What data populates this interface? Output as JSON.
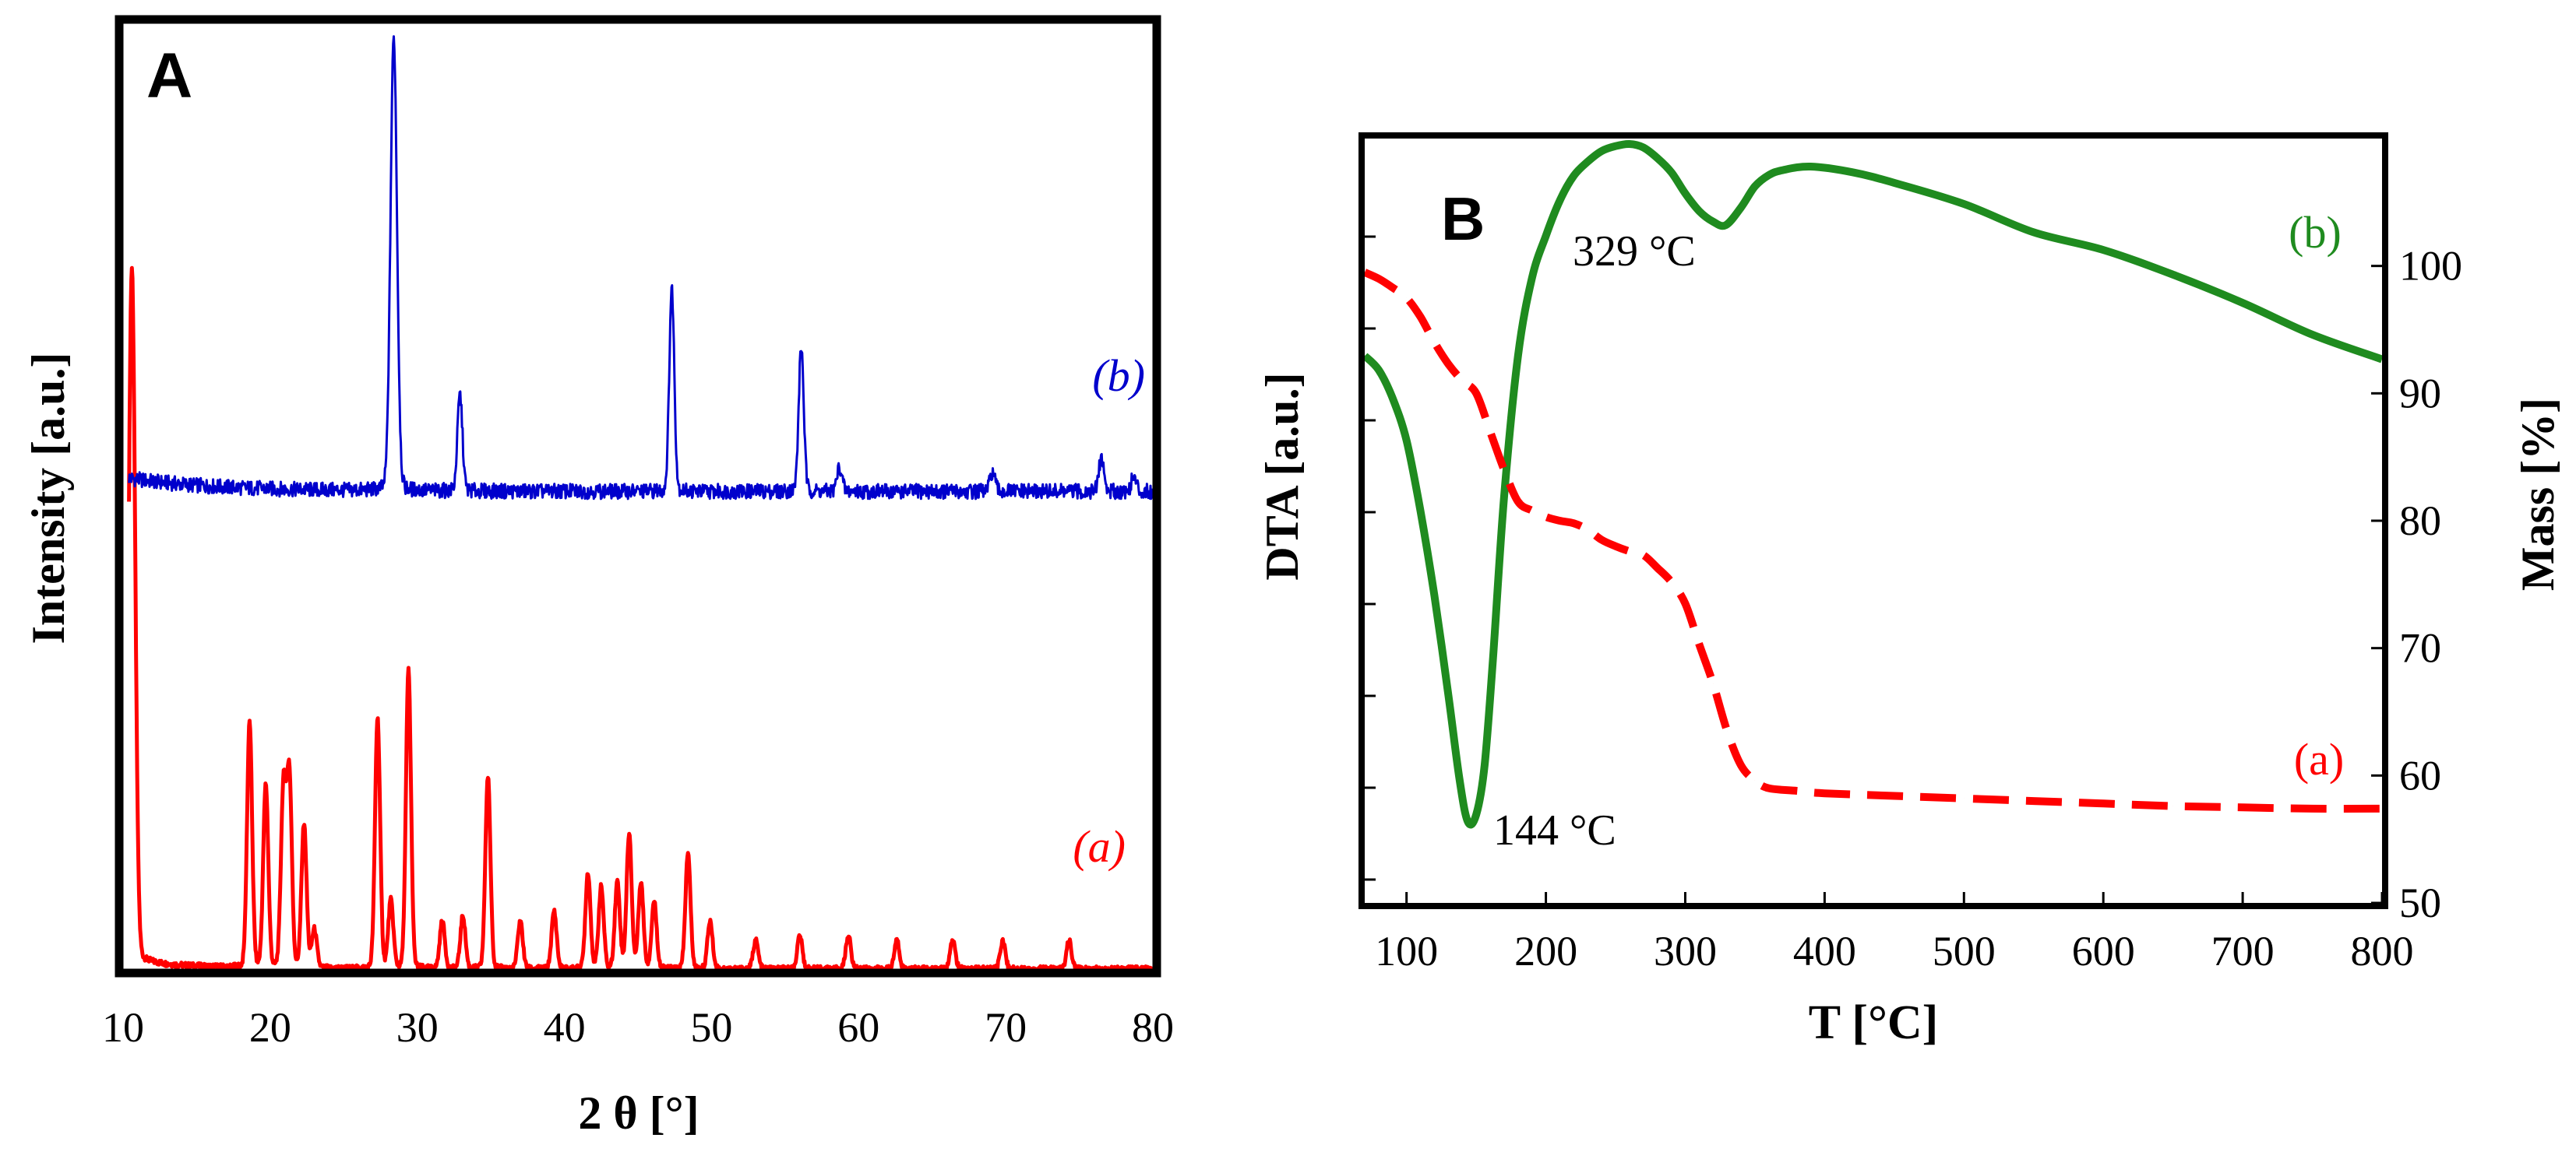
{
  "colors": {
    "xrd_a": "#ff0000",
    "xrd_b": "#0000cc",
    "dta": "#1f8b1f",
    "mass": "#ff0000",
    "frame": "#000000"
  },
  "chart_data": [
    {
      "type": "line",
      "panel_label": "A",
      "title": "",
      "xlabel": "2 θ [°]",
      "ylabel": "Intensity [a.u.]",
      "xlim": [
        10,
        80
      ],
      "ylim": [
        0,
        100
      ],
      "x_ticks": [
        10,
        20,
        30,
        40,
        50,
        60,
        70,
        80
      ],
      "series": [
        {
          "name": "(a)",
          "label": "(a)",
          "color": "#ff0000",
          "baseline": 0,
          "peaks": [
            [
              10.6,
              72
            ],
            [
              18.6,
              25.5
            ],
            [
              19.7,
              19
            ],
            [
              20.9,
              18.5
            ],
            [
              21.3,
              20
            ],
            [
              22.3,
              15
            ],
            [
              23.0,
              4
            ],
            [
              27.3,
              26
            ],
            [
              28.2,
              7
            ],
            [
              29.4,
              31
            ],
            [
              31.7,
              5
            ],
            [
              33.1,
              5.5
            ],
            [
              34.8,
              20
            ],
            [
              37.0,
              5
            ],
            [
              39.3,
              6
            ],
            [
              41.6,
              10
            ],
            [
              42.5,
              8.5
            ],
            [
              43.6,
              9
            ],
            [
              44.4,
              14
            ],
            [
              45.2,
              9
            ],
            [
              46.1,
              7
            ],
            [
              48.4,
              12
            ],
            [
              49.9,
              5
            ],
            [
              53.0,
              3
            ],
            [
              56.0,
              3.5
            ],
            [
              59.3,
              3.5
            ],
            [
              62.6,
              3
            ],
            [
              66.4,
              3
            ],
            [
              69.8,
              3
            ],
            [
              74.3,
              3
            ]
          ]
        },
        {
          "name": "(b)",
          "label": "(b)",
          "color": "#0000cc",
          "baseline": 50.5,
          "peaks": [
            [
              28.4,
              47
            ],
            [
              32.9,
              10
            ],
            [
              47.3,
              21
            ],
            [
              56.1,
              15
            ],
            [
              58.7,
              2.5
            ],
            [
              69.1,
              2
            ],
            [
              76.5,
              3.5
            ],
            [
              78.7,
              1.5
            ]
          ]
        }
      ]
    },
    {
      "type": "line",
      "panel_label": "B",
      "title": "",
      "xlabel": "T [°C]",
      "ylabel_left": "DTA [a.u.]",
      "ylabel_right": "Mass [%]",
      "xlim": [
        70,
        800
      ],
      "ylim_left": [
        0,
        100
      ],
      "ylim_right": [
        50,
        110
      ],
      "x_ticks": [
        100,
        200,
        300,
        400,
        500,
        600,
        700,
        800
      ],
      "y_ticks_right": [
        50,
        60,
        70,
        80,
        90,
        100
      ],
      "annotations": [
        {
          "text": "144 °C",
          "x": 144,
          "y": 4
        },
        {
          "text": "329 °C",
          "x": 329,
          "y": 85
        }
      ],
      "series": [
        {
          "name": "(b) DTA",
          "label": "(b)",
          "axis": "left",
          "color": "#1f8b1f",
          "style": "solid",
          "x": [
            70,
            80,
            90,
            100,
            110,
            120,
            130,
            138,
            144,
            150,
            156,
            162,
            170,
            180,
            190,
            200,
            210,
            220,
            230,
            240,
            250,
            260,
            270,
            280,
            290,
            300,
            310,
            320,
            329,
            340,
            350,
            360,
            370,
            390,
            420,
            450,
            500,
            550,
            600,
            650,
            700,
            750,
            800
          ],
          "y": [
            70,
            68,
            64,
            58,
            48,
            36,
            22,
            10,
            4,
            5,
            12,
            27,
            50,
            70,
            81,
            87,
            92,
            95.5,
            97.5,
            99,
            99.7,
            100,
            99.5,
            98,
            96,
            93,
            90.5,
            89,
            88.5,
            91,
            94,
            95.6,
            96.3,
            96.8,
            96,
            94.5,
            91.5,
            87.5,
            85,
            81.5,
            77.5,
            73,
            69.5
          ]
        },
        {
          "name": "(a) Mass",
          "label": "(a)",
          "axis": "right",
          "color": "#ff0000",
          "style": "dashed",
          "x": [
            70,
            80,
            90,
            100,
            110,
            120,
            130,
            140,
            150,
            160,
            170,
            180,
            190,
            200,
            210,
            220,
            230,
            240,
            250,
            260,
            270,
            280,
            290,
            300,
            310,
            320,
            330,
            340,
            350,
            360,
            380,
            400,
            450,
            500,
            550,
            600,
            650,
            700,
            750,
            800
          ],
          "y": [
            99.5,
            99,
            98.3,
            97.5,
            96,
            94,
            92.3,
            91,
            90,
            87,
            84,
            81.5,
            80.8,
            80.3,
            80,
            79.8,
            79.3,
            78.5,
            78,
            77.6,
            77.3,
            76.3,
            75.2,
            73.5,
            70.3,
            67.2,
            63.5,
            60.8,
            59.6,
            59,
            58.8,
            58.6,
            58.4,
            58.2,
            58.0,
            57.8,
            57.6,
            57.5,
            57.4,
            57.4
          ]
        }
      ]
    }
  ]
}
